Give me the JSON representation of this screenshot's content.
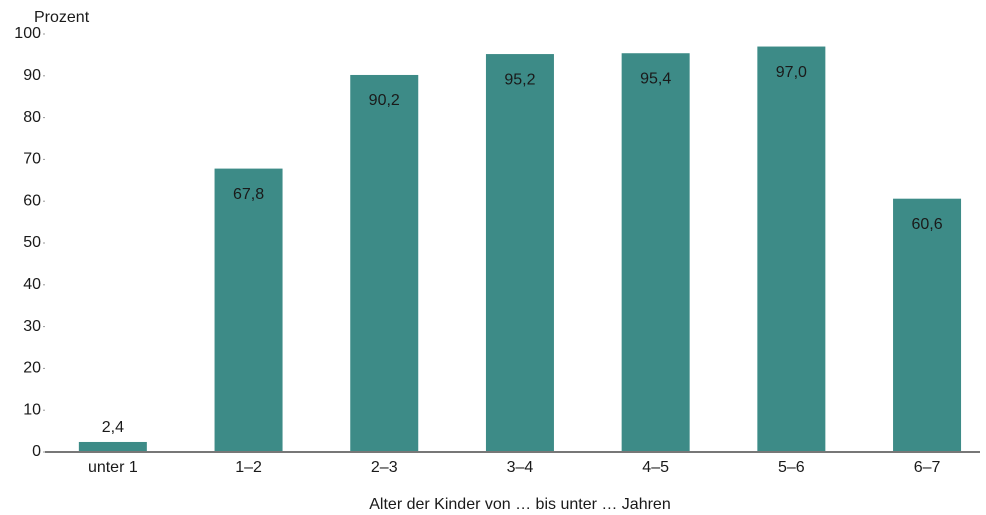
{
  "chart_data": {
    "type": "bar",
    "y_label": "Prozent",
    "x_label": "Alter der Kinder von … bis unter … Jahren",
    "categories": [
      "unter 1",
      "1–2",
      "2–3",
      "3–4",
      "4–5",
      "5–6",
      "6–7"
    ],
    "values": [
      2.4,
      67.8,
      90.2,
      95.2,
      95.4,
      97.0,
      60.6
    ],
    "value_labels": [
      "2,4",
      "67,8",
      "90,2",
      "95,2",
      "95,4",
      "97,0",
      "60,6"
    ],
    "color": "#3d8b87",
    "ylim": [
      0,
      100
    ],
    "yticks": [
      0,
      10,
      20,
      30,
      40,
      50,
      60,
      70,
      80,
      90,
      100
    ],
    "grid": false
  }
}
